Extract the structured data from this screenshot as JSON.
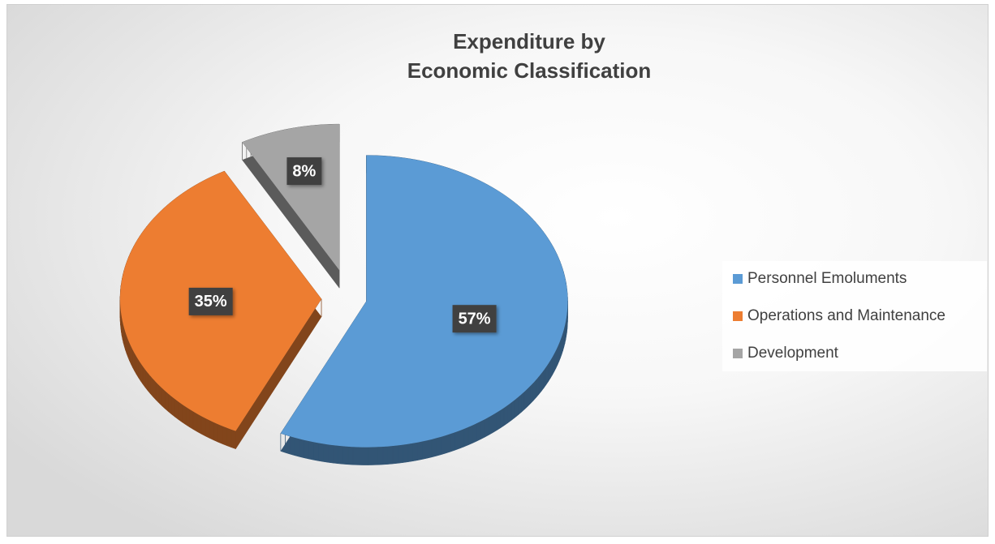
{
  "chart_data": {
    "type": "pie",
    "title": [
      "Expenditure by",
      "Economic Classification"
    ],
    "categories": [
      "Personnel Emoluments",
      "Operations and Maintenance",
      "Development"
    ],
    "values": [
      57,
      35,
      8
    ],
    "value_labels": [
      "57%",
      "35%",
      "8%"
    ],
    "colors": [
      "#5b9bd5",
      "#ed7d31",
      "#a5a5a5"
    ],
    "legend": "right"
  }
}
